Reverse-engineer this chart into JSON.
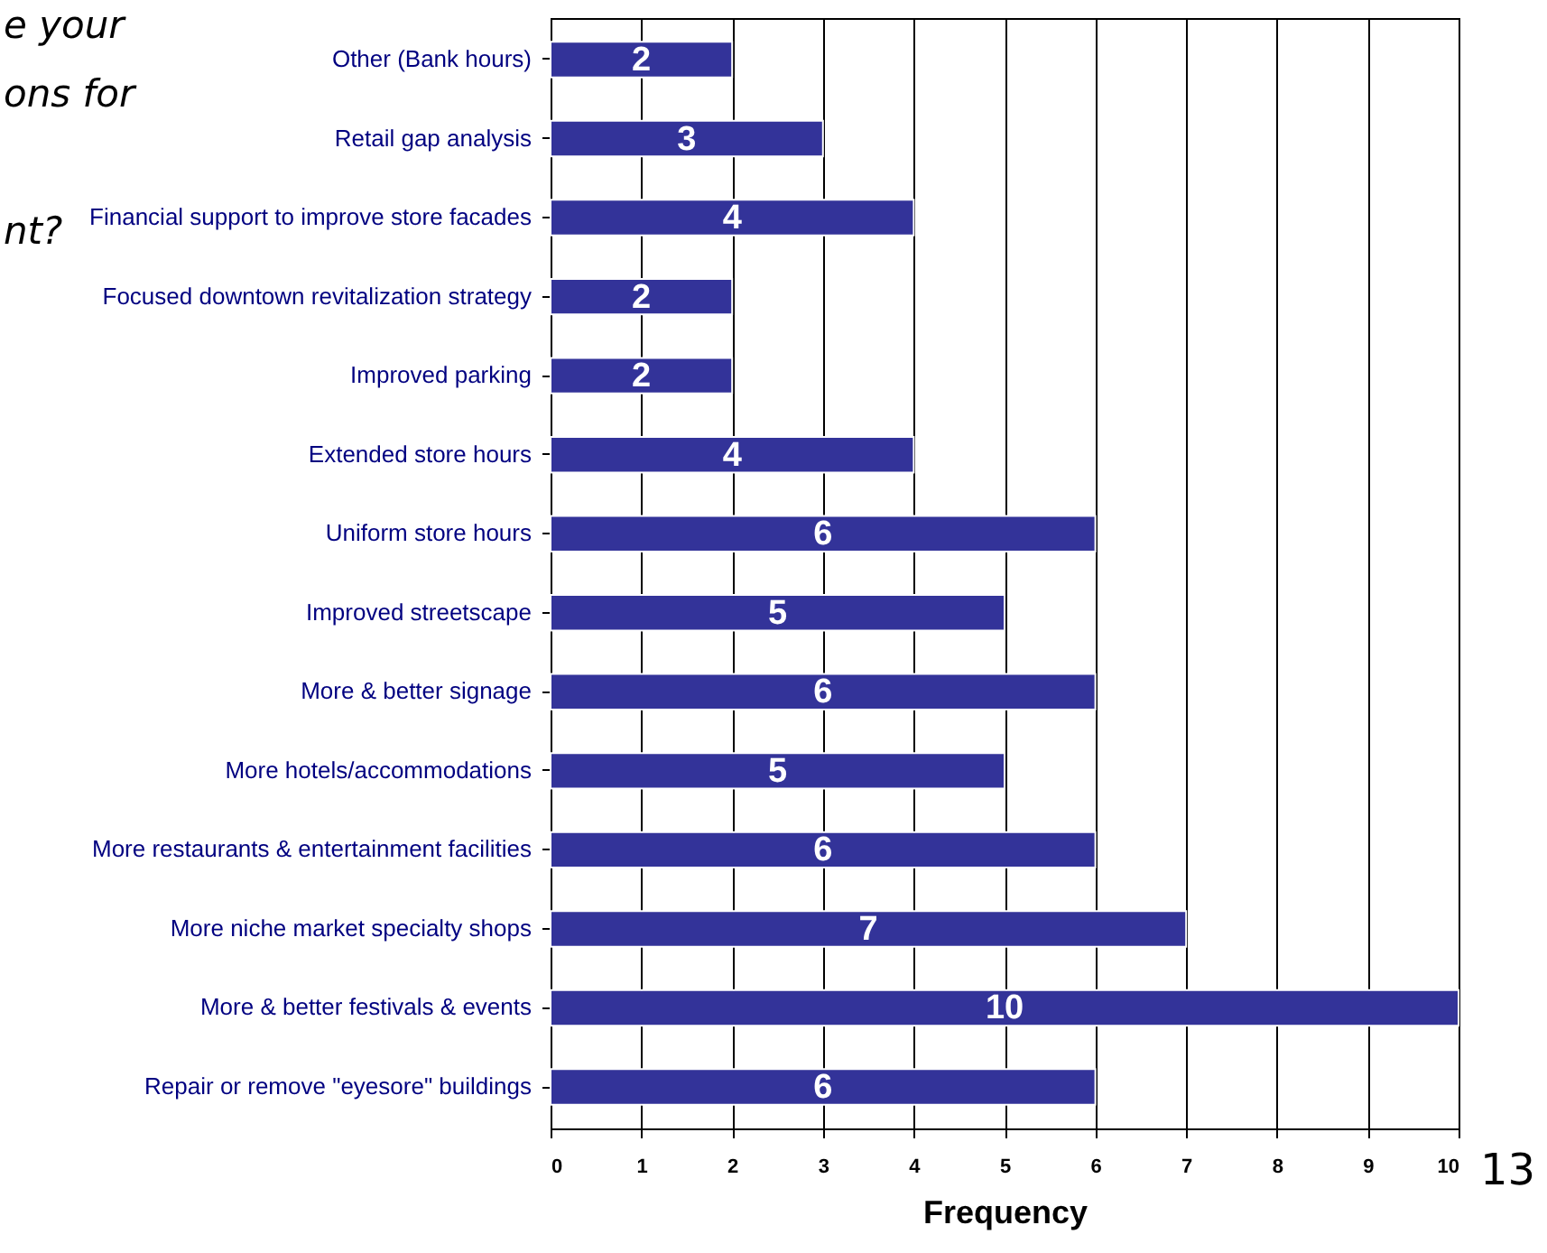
{
  "chart_data": {
    "type": "bar",
    "orientation": "horizontal",
    "xlabel": "Frequency",
    "categories": [
      "Other (Bank hours)",
      "Retail gap analysis",
      "Financial support to improve store facades",
      "Focused downtown revitalization strategy",
      "Improved parking",
      "Extended store hours",
      "Uniform store hours",
      "Improved streetscape",
      "More & better signage",
      "More hotels/accommodations",
      "More restaurants & entertainment facilities",
      "More niche market specialty shops",
      "More & better festivals & events",
      "Repair or remove \"eyesore\" buildings"
    ],
    "values": [
      2,
      3,
      4,
      2,
      2,
      4,
      6,
      5,
      6,
      5,
      6,
      7,
      10,
      6
    ],
    "color": "#333399",
    "xlim": [
      0,
      10
    ],
    "xticks": [
      0,
      1,
      2,
      3,
      4,
      5,
      6,
      7,
      8,
      9,
      10
    ],
    "grid": "x",
    "data_labels": true,
    "annotations": [
      "e your",
      "ons for",
      "nt?",
      "13"
    ]
  }
}
